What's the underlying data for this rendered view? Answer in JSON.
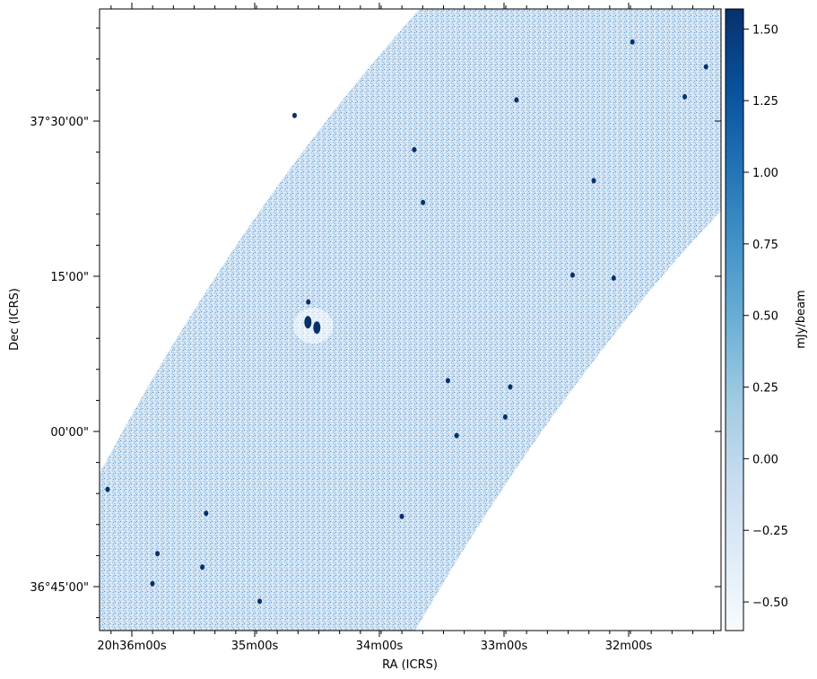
{
  "chart_data": {
    "type": "heatmap",
    "title": "",
    "xlabel": "RA (ICRS)",
    "ylabel": "Dec (ICRS)",
    "x_ticks": [
      {
        "parts": [
          [
            "20",
            ""
          ],
          [
            "h",
            ""
          ],
          [
            "36",
            ""
          ],
          [
            "m",
            ""
          ],
          [
            "00",
            ""
          ],
          [
            "s",
            ""
          ]
        ],
        "text": "20h36m00s"
      },
      {
        "text": "35m00s"
      },
      {
        "text": "34m00s"
      },
      {
        "text": "33m00s"
      },
      {
        "text": "32m00s"
      }
    ],
    "y_ticks": [
      "37°30'00\"",
      "15'00\"",
      "00'00\"",
      "36°45'00\""
    ],
    "colorbar": {
      "label": "mJy/beam",
      "colormap": "Blues",
      "range": [
        -0.6,
        1.57
      ],
      "ticks": [
        "1.50",
        "1.25",
        "1.00",
        "0.75",
        "0.50",
        "0.25",
        "0.00",
        "−0.25",
        "−0.50"
      ],
      "tick_values": [
        1.5,
        1.25,
        1.0,
        0.75,
        0.5,
        0.25,
        0.0,
        -0.25,
        -0.5
      ]
    },
    "image": {
      "description_of_mosaic": "diagonal survey strip",
      "noise_color": "#9cc3e4",
      "sources": [
        {
          "ra_min": 34.53,
          "dec_arcmin": 10.2,
          "kind": "bright-extended"
        },
        {
          "ra_min": 34.57,
          "dec_arcmin": 12.5
        },
        {
          "ra_min": 35.78,
          "dec_arcmin": -11.8
        },
        {
          "ra_min": 35.82,
          "dec_arcmin": -14.7
        },
        {
          "ra_min": 31.97,
          "dec_arcmin": 37.6
        },
        {
          "ra_min": 31.38,
          "dec_arcmin": 35.2
        },
        {
          "ra_min": 31.55,
          "dec_arcmin": 32.3
        },
        {
          "ra_min": 32.9,
          "dec_arcmin": 32.0
        },
        {
          "ra_min": 32.28,
          "dec_arcmin": 24.2
        },
        {
          "ra_min": 33.65,
          "dec_arcmin": 22.1
        },
        {
          "ra_min": 32.45,
          "dec_arcmin": 15.1
        },
        {
          "ra_min": 32.12,
          "dec_arcmin": 14.8
        },
        {
          "ra_min": 33.45,
          "dec_arcmin": 4.9
        },
        {
          "ra_min": 32.95,
          "dec_arcmin": 4.3
        },
        {
          "ra_min": 32.99,
          "dec_arcmin": 1.4
        },
        {
          "ra_min": 33.38,
          "dec_arcmin": -0.4
        },
        {
          "ra_min": 36.18,
          "dec_arcmin": -5.6
        },
        {
          "ra_min": 35.39,
          "dec_arcmin": -7.9
        },
        {
          "ra_min": 33.82,
          "dec_arcmin": -8.2
        },
        {
          "ra_min": 35.42,
          "dec_arcmin": -13.1
        },
        {
          "ra_min": 34.96,
          "dec_arcmin": -16.4
        },
        {
          "ra_min": 33.72,
          "dec_arcmin": 27.2
        },
        {
          "ra_min": 34.68,
          "dec_arcmin": 30.5
        }
      ]
    }
  }
}
